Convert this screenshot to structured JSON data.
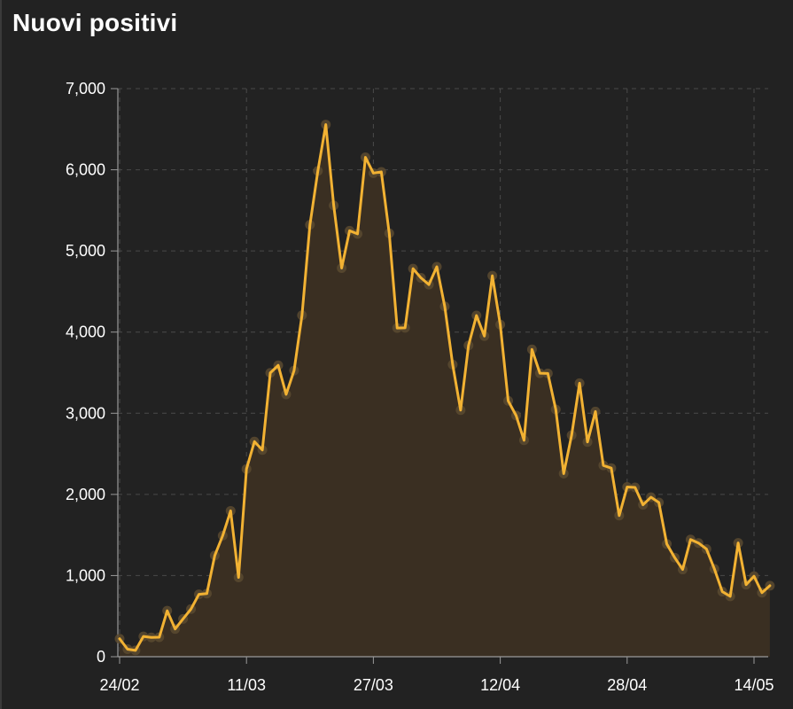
{
  "chart_data": {
    "type": "area",
    "title": "Nuovi positivi",
    "xlabel": "",
    "ylabel": "",
    "ylim": [
      0,
      7000
    ],
    "yticks": [
      0,
      1000,
      2000,
      3000,
      4000,
      5000,
      6000,
      7000
    ],
    "ytick_labels": [
      "0",
      "1,000",
      "2,000",
      "3,000",
      "4,000",
      "5,000",
      "6,000",
      "7,000"
    ],
    "xtick_labels": [
      "24/02",
      "11/03",
      "27/03",
      "12/04",
      "28/04",
      "14/05"
    ],
    "xticks": [
      "2020-02-24",
      "2020-03-11",
      "2020-03-27",
      "2020-04-12",
      "2020-04-28",
      "2020-05-14"
    ],
    "grid": true,
    "colors": {
      "line": "#f2b233",
      "fill": "#3a2f22",
      "marker": "#5a4a30",
      "grid": "#4a4a4a",
      "axis": "#9a9a9a"
    },
    "series": [
      {
        "x": [
          "2020-02-24",
          "2020-02-25",
          "2020-02-26",
          "2020-02-27",
          "2020-02-28",
          "2020-02-29",
          "2020-03-01",
          "2020-03-02",
          "2020-03-03",
          "2020-03-04",
          "2020-03-05",
          "2020-03-06",
          "2020-03-07",
          "2020-03-08",
          "2020-03-09",
          "2020-03-10",
          "2020-03-11",
          "2020-03-12",
          "2020-03-13",
          "2020-03-14",
          "2020-03-15",
          "2020-03-16",
          "2020-03-17",
          "2020-03-18",
          "2020-03-19",
          "2020-03-20",
          "2020-03-21",
          "2020-03-22",
          "2020-03-23",
          "2020-03-24",
          "2020-03-25",
          "2020-03-26",
          "2020-03-27",
          "2020-03-28",
          "2020-03-29",
          "2020-03-30",
          "2020-03-31",
          "2020-04-01",
          "2020-04-02",
          "2020-04-03",
          "2020-04-04",
          "2020-04-05",
          "2020-04-06",
          "2020-04-07",
          "2020-04-08",
          "2020-04-09",
          "2020-04-10",
          "2020-04-11",
          "2020-04-12",
          "2020-04-13",
          "2020-04-14",
          "2020-04-15",
          "2020-04-16",
          "2020-04-17",
          "2020-04-18",
          "2020-04-19",
          "2020-04-20",
          "2020-04-21",
          "2020-04-22",
          "2020-04-23",
          "2020-04-24",
          "2020-04-25",
          "2020-04-26",
          "2020-04-27",
          "2020-04-28",
          "2020-04-29",
          "2020-04-30",
          "2020-05-01",
          "2020-05-02",
          "2020-05-03",
          "2020-05-04",
          "2020-05-05",
          "2020-05-06",
          "2020-05-07",
          "2020-05-08",
          "2020-05-09",
          "2020-05-10",
          "2020-05-11",
          "2020-05-12",
          "2020-05-13",
          "2020-05-14",
          "2020-05-15",
          "2020-05-16"
        ],
        "values": [
          221,
          93,
          78,
          250,
          238,
          240,
          566,
          342,
          466,
          587,
          769,
          778,
          1247,
          1492,
          1797,
          977,
          2313,
          2651,
          2547,
          3497,
          3590,
          3233,
          3526,
          4207,
          5322,
          5986,
          6557,
          5560,
          4789,
          5249,
          5210,
          6153,
          5959,
          5974,
          5217,
          4050,
          4053,
          4782,
          4668,
          4585,
          4805,
          4316,
          3599,
          3039,
          3836,
          4204,
          3951,
          4694,
          4092,
          3153,
          2972,
          2667,
          3786,
          3493,
          3491,
          3047,
          2256,
          2729,
          3370,
          2646,
          3021,
          2357,
          2324,
          1739,
          2091,
          2086,
          1872,
          1965,
          1900,
          1389,
          1221,
          1075,
          1444,
          1401,
          1327,
          1083,
          802,
          744,
          1402,
          888,
          992,
          789,
          875
        ]
      }
    ]
  }
}
